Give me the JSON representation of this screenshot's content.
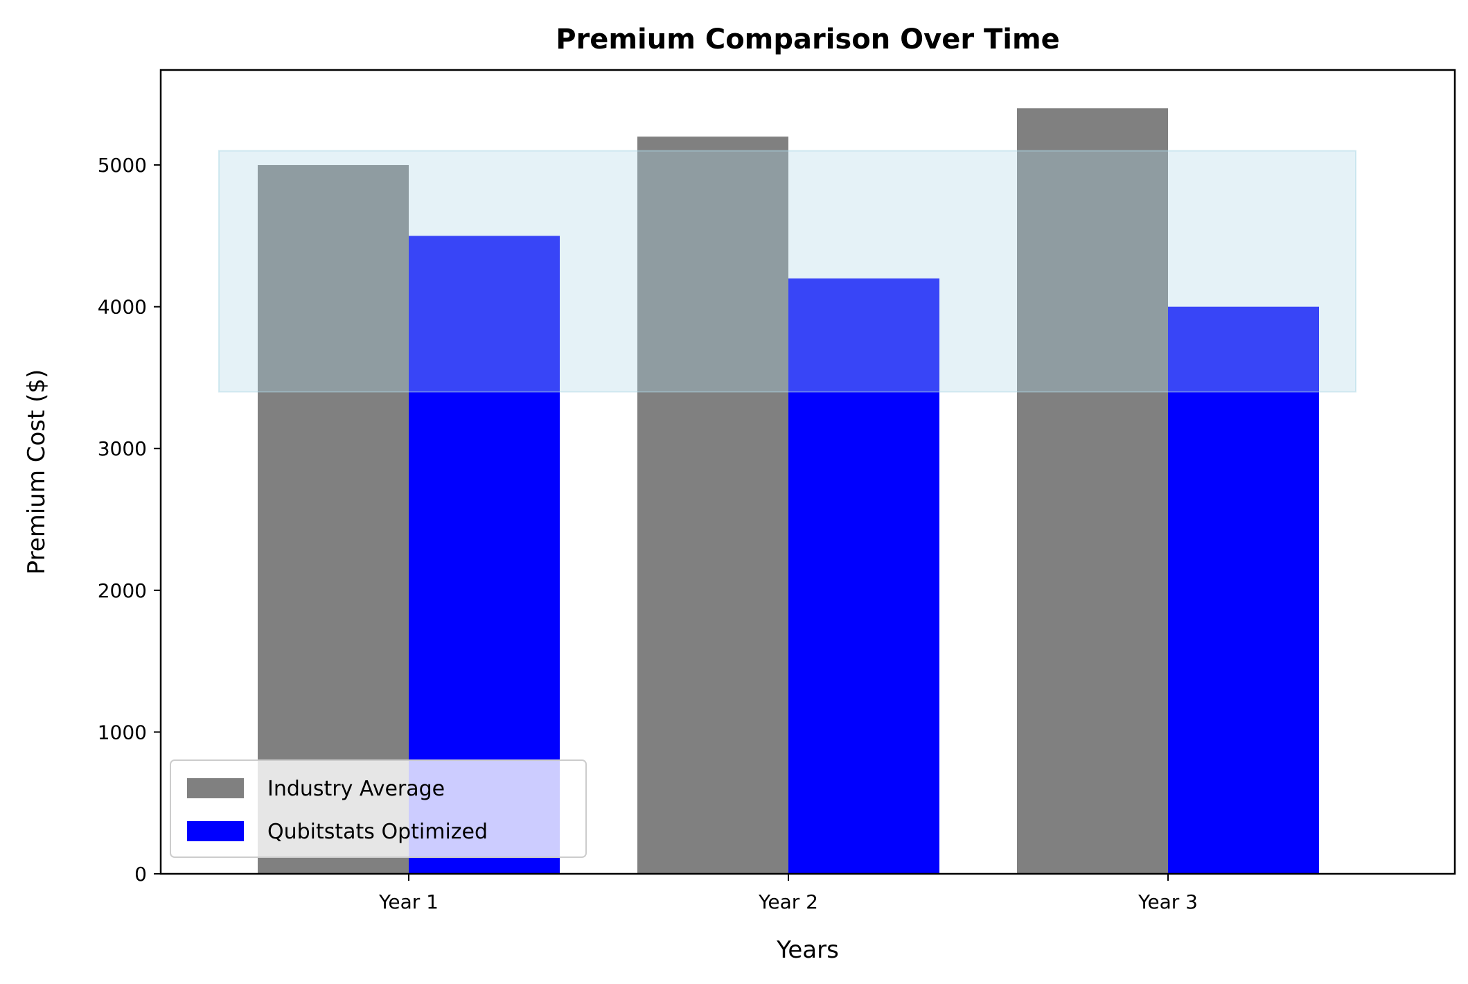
{
  "chart_data": {
    "type": "bar",
    "title": "Premium Comparison Over Time",
    "xlabel": "Years",
    "ylabel": "Premium Cost ($)",
    "categories": [
      "Year 1",
      "Year 2",
      "Year 3"
    ],
    "series": [
      {
        "name": "Industry Average",
        "values": [
          5000,
          5200,
          5400
        ],
        "color": "#808080"
      },
      {
        "name": "Qubitstats Optimized",
        "values": [
          4500,
          4200,
          4000
        ],
        "color": "#0000ff"
      }
    ],
    "ylim": [
      0,
      5670
    ],
    "yticks": [
      0,
      1000,
      2000,
      3000,
      4000,
      5000
    ],
    "highlight_band": {
      "y_min": 3400,
      "y_max": 5100,
      "color": "#add8e6"
    },
    "grid": false,
    "legend_position": "lower-left"
  }
}
